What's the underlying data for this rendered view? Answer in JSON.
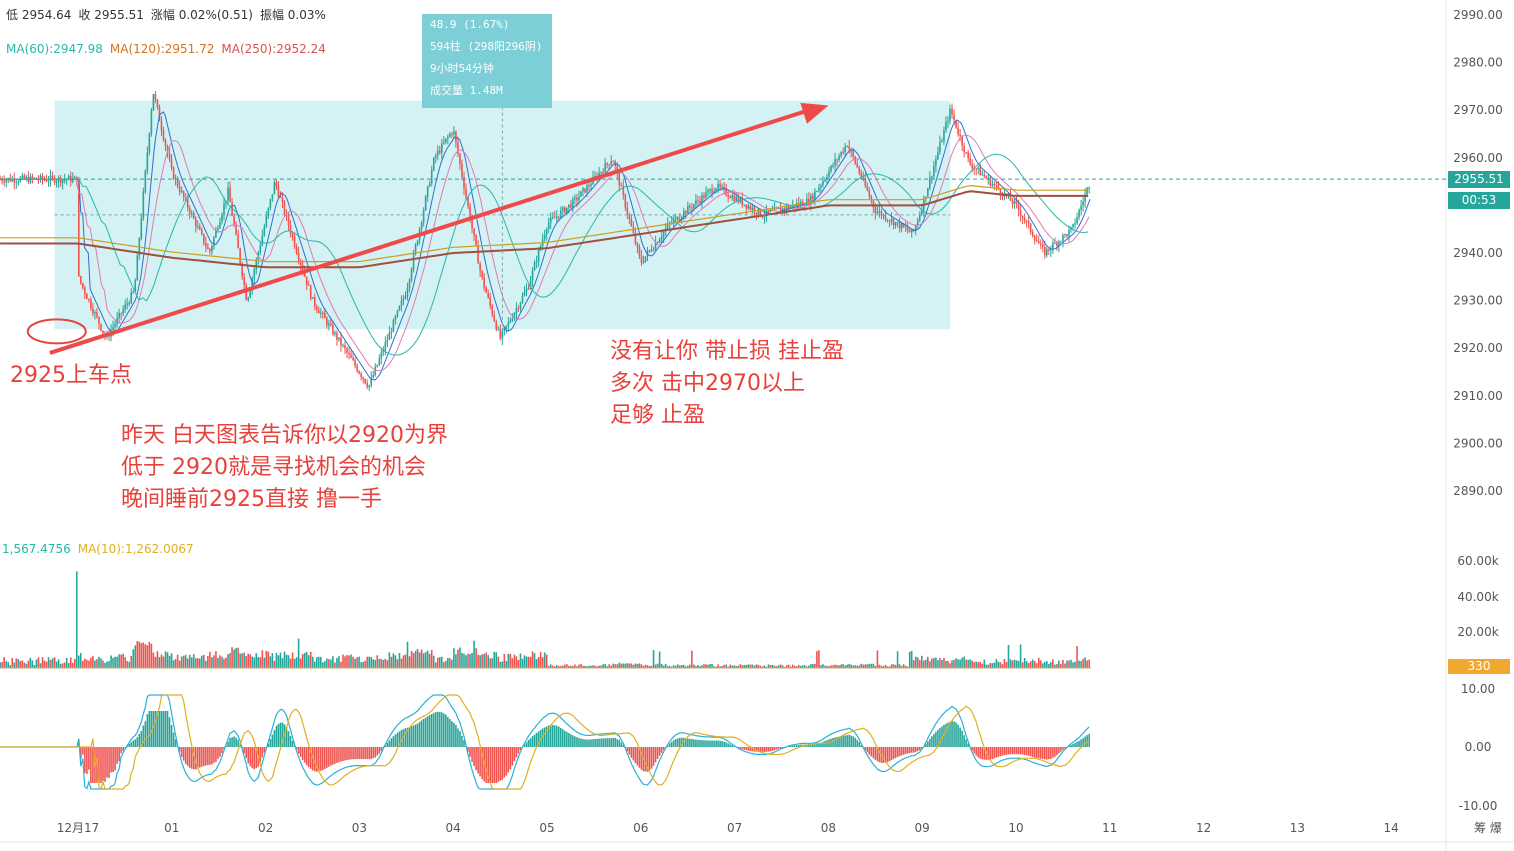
{
  "header": {
    "price_line": [
      {
        "text": "低 2954.64",
        "color": "#333333"
      },
      {
        "text": "收 2955.51",
        "color": "#333333"
      },
      {
        "text": "涨幅 0.02%(0.51)",
        "color": "#333333"
      },
      {
        "text": "振幅 0.03%",
        "color": "#333333"
      }
    ],
    "ma_line": [
      {
        "text": "MA(60):2947.98",
        "color": "#26b9a8"
      },
      {
        "text": "MA(120):2951.72",
        "color": "#d0741f"
      },
      {
        "text": "MA(250):2952.24",
        "color": "#d9534f"
      }
    ],
    "volume_line": [
      {
        "text": "1,567.4756",
        "color": "#26b9a8"
      },
      {
        "text": "MA(10):1,262.0067",
        "color": "#e0b020"
      }
    ]
  },
  "tooltip": [
    "48.9 (1.67%)",
    "594柱 (298阳296阴)",
    "9小时54分钟",
    "成交量 1.48M"
  ],
  "annotations": {
    "entry_label": "2925上车点",
    "note_left": [
      "昨天 白天图表告诉你以2920为界",
      "低于 2920就是寻找机会的机会",
      "晚间睡前2925直接 撸一手"
    ],
    "note_right": [
      "没有让你 带止损 挂止盈",
      "多次 击中2970以上",
      "足够 止盈"
    ]
  },
  "price_tag": {
    "value": "2955.51",
    "timer": "00:53"
  },
  "volume_tag": "330",
  "colors": {
    "up": "#26a69a",
    "down": "#ef5350",
    "range_box": "#cdeef1",
    "arrow": "#ef4a4a",
    "tag": "#26a69a",
    "vol_tag": "#f0a830"
  },
  "chart_data": {
    "type": "candlestick",
    "x_ticks": [
      "12月17",
      "01",
      "02",
      "03",
      "04",
      "05",
      "06",
      "07",
      "08",
      "09",
      "10",
      "11",
      "12",
      "13",
      "14"
    ],
    "price_axis": {
      "ticks": [
        "2990.00",
        "2980.00",
        "2970.00",
        "2960.00",
        "2955.51",
        "2940.00",
        "2930.00",
        "2920.00",
        "2910.00",
        "2900.00",
        "2890.00"
      ],
      "range": [
        2882,
        2992
      ]
    },
    "volume_axis": {
      "ticks": [
        "60.00k",
        "40.00k",
        "20.00k"
      ]
    },
    "macd_axis": {
      "ticks": [
        "10.00",
        "0.00",
        "-10.00"
      ]
    },
    "price_path": [
      [
        0,
        2935
      ],
      [
        0.3,
        2922
      ],
      [
        0.6,
        2932
      ],
      [
        0.8,
        2974
      ],
      [
        1.0,
        2957
      ],
      [
        1.4,
        2940
      ],
      [
        1.6,
        2953
      ],
      [
        1.8,
        2930
      ],
      [
        2.1,
        2955
      ],
      [
        2.5,
        2930
      ],
      [
        2.9,
        2918
      ],
      [
        3.1,
        2912
      ],
      [
        3.5,
        2932
      ],
      [
        3.8,
        2960
      ],
      [
        4.0,
        2966
      ],
      [
        4.3,
        2935
      ],
      [
        4.5,
        2922
      ],
      [
        4.8,
        2933
      ],
      [
        5.0,
        2946
      ],
      [
        5.3,
        2951
      ],
      [
        5.7,
        2960
      ],
      [
        6.0,
        2938
      ],
      [
        6.3,
        2946
      ],
      [
        6.8,
        2954
      ],
      [
        7.3,
        2948
      ],
      [
        7.8,
        2951
      ],
      [
        8.2,
        2963
      ],
      [
        8.5,
        2949
      ],
      [
        8.9,
        2944
      ],
      [
        9.0,
        2950
      ],
      [
        9.3,
        2970
      ],
      [
        9.5,
        2959
      ],
      [
        10.0,
        2950
      ],
      [
        10.3,
        2940
      ],
      [
        10.6,
        2945
      ],
      [
        10.8,
        2955.5
      ]
    ],
    "ma_long": [
      [
        0,
        2942
      ],
      [
        1.0,
        2939
      ],
      [
        2.0,
        2937
      ],
      [
        3.0,
        2937
      ],
      [
        4.0,
        2940
      ],
      [
        5.0,
        2941
      ],
      [
        6.0,
        2944
      ],
      [
        7.0,
        2947
      ],
      [
        8.0,
        2950
      ],
      [
        9.0,
        2950
      ],
      [
        9.5,
        2953
      ],
      [
        10.0,
        2952
      ],
      [
        10.8,
        2952
      ]
    ],
    "range_box": {
      "x": [
        -0.25,
        9.3
      ],
      "y": [
        2924,
        2972
      ]
    },
    "arrow": {
      "from": [
        -0.3,
        2919
      ],
      "to": [
        8.0,
        2971
      ]
    },
    "entry_marker": {
      "x": 0.2,
      "y": 2925
    }
  }
}
